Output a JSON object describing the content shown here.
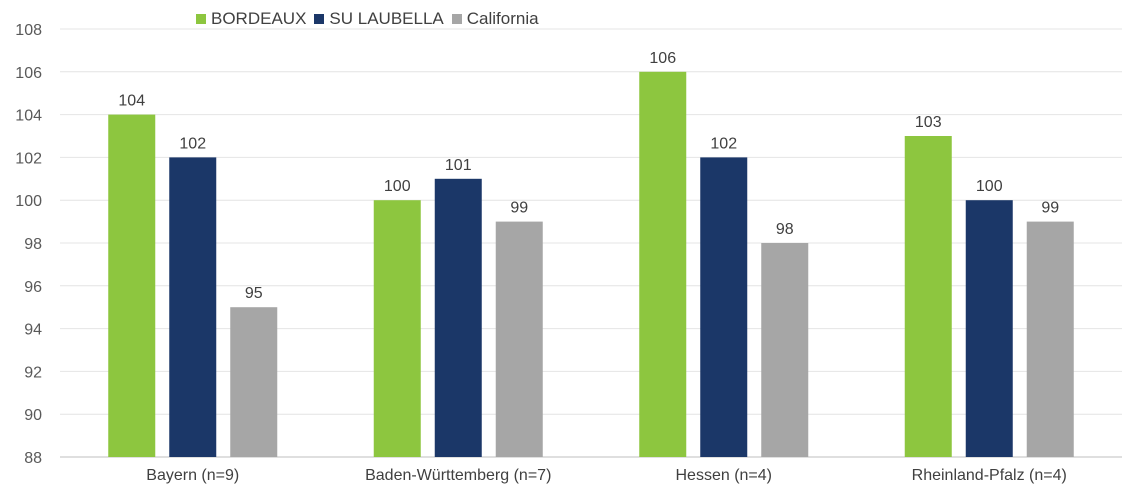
{
  "chart_data": {
    "type": "bar",
    "categories": [
      "Bayern (n=9)",
      "Baden-Württemberg (n=7)",
      "Hessen (n=4)",
      "Rheinland-Pfalz (n=4)"
    ],
    "series": [
      {
        "name": "BORDEAUX",
        "values": [
          104,
          100,
          106,
          103
        ],
        "color": "#8DC63F"
      },
      {
        "name": "SU LAUBELLA",
        "values": [
          102,
          101,
          102,
          100
        ],
        "color": "#1B3768"
      },
      {
        "name": "California",
        "values": [
          95,
          99,
          98,
          99
        ],
        "color": "#A6A6A6"
      }
    ],
    "ylim": [
      88,
      108
    ],
    "yticks": [
      "88",
      "90",
      "92",
      "94",
      "96",
      "98",
      "100",
      "102",
      "104",
      "106",
      "108"
    ],
    "grid": true,
    "legend_position": "top-left",
    "data_labels": true
  }
}
